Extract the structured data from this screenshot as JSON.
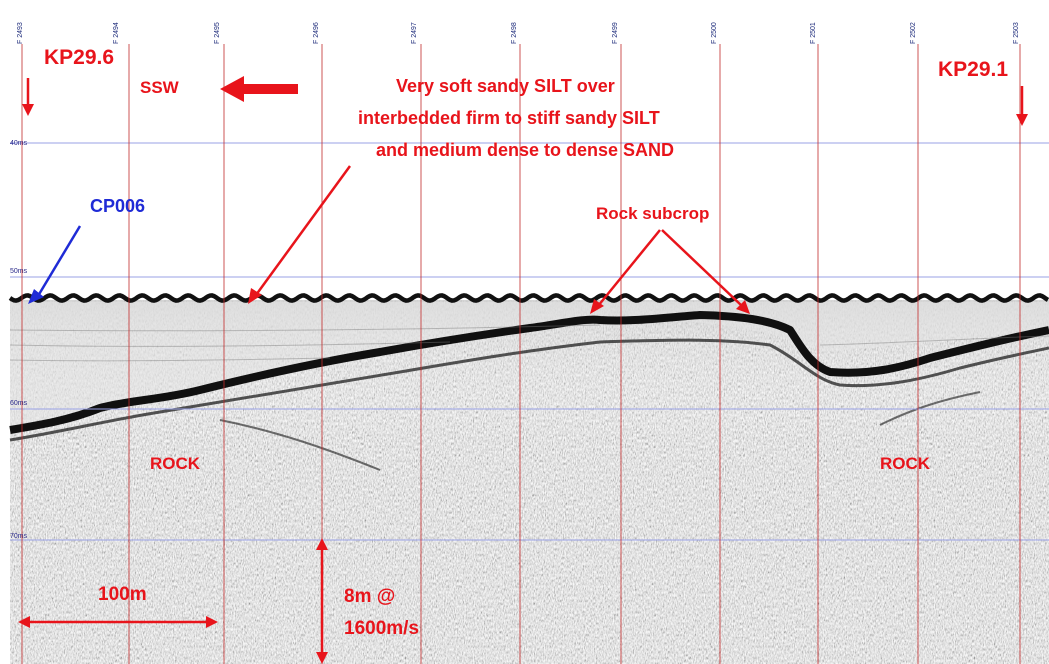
{
  "labels": {
    "kp_left": "KP29.6",
    "kp_right": "KP29.1",
    "direction": "SSW",
    "cp": "CP006",
    "description_line1": "Very soft sandy SILT over",
    "description_line2": "interbedded firm to stiff sandy SILT",
    "description_line3": "and medium dense to dense SAND",
    "rock_subcrop": "Rock subcrop",
    "rock_left": "ROCK",
    "rock_right": "ROCK",
    "scale_horizontal": "100m",
    "scale_vertical_line1": "8m @",
    "scale_vertical_line2": "1600m/s"
  },
  "time_ticks": [
    "40ms",
    "50ms",
    "60ms",
    "70ms"
  ],
  "fix_labels": [
    "F 2493",
    "F 2494",
    "F 2495",
    "F 2496",
    "F 2497",
    "F 2498",
    "F 2499",
    "F 2500",
    "F 2501",
    "F 2502",
    "F 2503"
  ],
  "colors": {
    "annotation_red": "#e8141b",
    "annotation_blue": "#1f2bd6",
    "fix_line": "#c22a2a",
    "time_line": "#9aa2e6",
    "seabed": "#111111"
  }
}
